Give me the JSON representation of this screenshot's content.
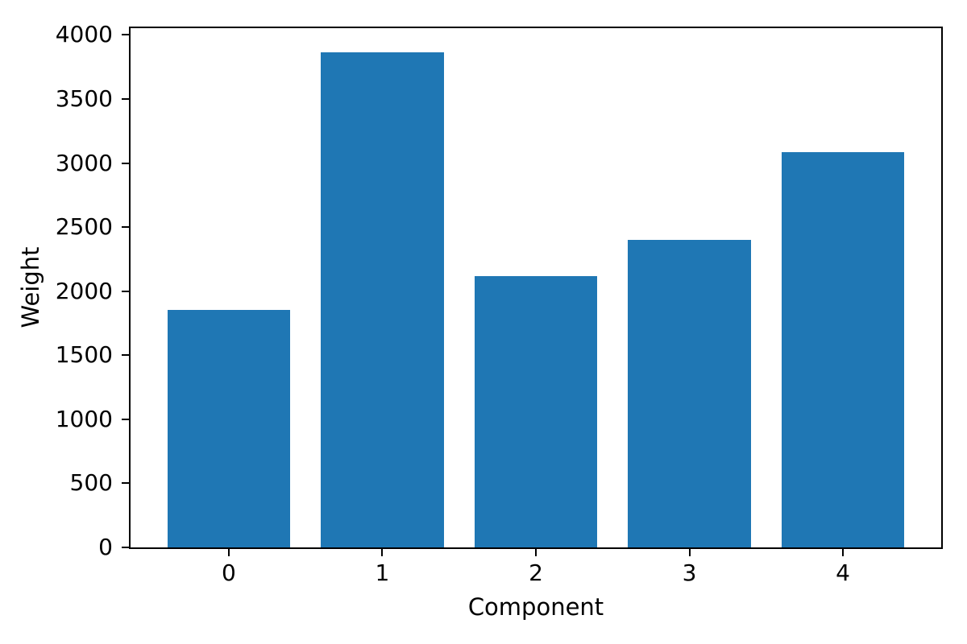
{
  "figure": {
    "background": "#ffffff",
    "text_color": "#000000"
  },
  "chart_data": {
    "type": "bar",
    "categories": [
      "0",
      "1",
      "2",
      "3",
      "4"
    ],
    "values": [
      1855,
      3865,
      2120,
      2400,
      3085
    ],
    "xlabel": "Component",
    "ylabel": "Weight",
    "yticks": [
      0,
      500,
      1000,
      1500,
      2000,
      2500,
      3000,
      3500,
      4000
    ],
    "ylim": [
      0,
      4053
    ],
    "xlim": [
      -0.64,
      4.64
    ],
    "bar_width_data_units": 0.8,
    "bar_color": "#1f77b4",
    "axis_color": "#000000",
    "grid": false,
    "legend": "none",
    "title": ""
  }
}
